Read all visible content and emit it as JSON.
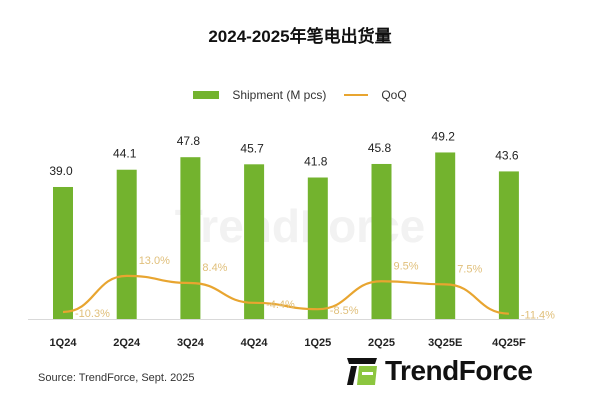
{
  "chart_data": {
    "type": "bar",
    "title": "2024-2025年笔电出货量",
    "categories": [
      "1Q24",
      "2Q24",
      "3Q24",
      "4Q24",
      "1Q25",
      "2Q25",
      "3Q25E",
      "4Q25F"
    ],
    "series": [
      {
        "name": "Shipment (M pcs)",
        "type": "bar",
        "color": "#73b32e",
        "values": [
          39.0,
          44.1,
          47.8,
          45.7,
          41.8,
          45.8,
          49.2,
          43.6
        ],
        "labels": [
          "39.0",
          "44.1",
          "47.8",
          "45.7",
          "41.8",
          "45.8",
          "49.2",
          "43.6"
        ]
      },
      {
        "name": "QoQ",
        "type": "line",
        "color": "#e8a530",
        "values": [
          -10.3,
          13.0,
          8.4,
          -4.4,
          -8.5,
          9.5,
          7.5,
          -11.4
        ],
        "labels": [
          "-10.3%",
          "13.0%",
          "8.4%",
          "-4.4%",
          "-8.5%",
          "9.5%",
          "7.5%",
          "-11.4%"
        ]
      }
    ],
    "legend": "top",
    "grid": false
  },
  "source": "Source: TrendForce, Sept. 2025",
  "logo_text": "TrendForce",
  "watermark": "TrendForce"
}
